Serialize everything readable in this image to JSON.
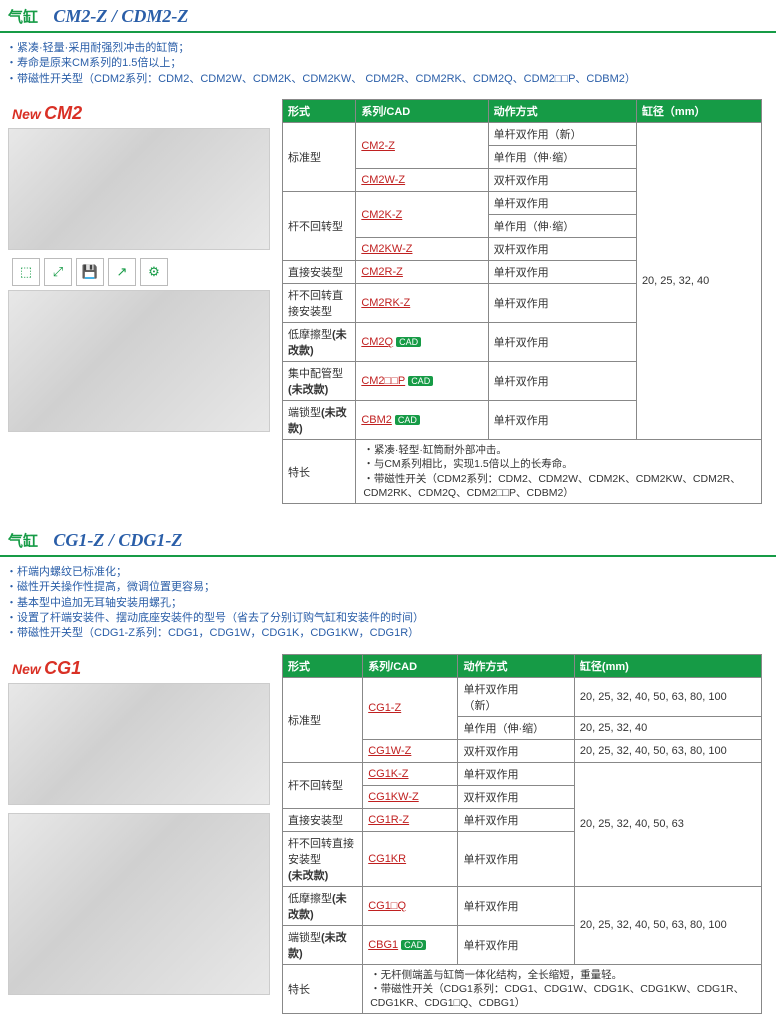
{
  "section1": {
    "title_label": "气缸",
    "title_model": "CM2-Z / CDM2-Z",
    "bullets": [
      "・紧凑·轻量·采用耐强烈冲击的缸筒；",
      "・寿命是原来CM系列的1.5倍以上；",
      "・带磁性开关型（CDM2系列：CDM2、CDM2W、CDM2K、CDM2KW、 CDM2R、CDM2RK、CDM2Q、CDM2□□P、CDBM2）"
    ],
    "badge_new": "New",
    "badge_sku": "CM2",
    "table": {
      "headers": [
        "形式",
        "系列/CAD",
        "动作方式",
        "缸径（mm）"
      ],
      "bore_all": "20, 25, 32, 40",
      "rows": [
        {
          "form": "标准型",
          "form_rowspan": 3,
          "series": "CM2-Z",
          "series_rowspan": 2,
          "mode": "单杆双作用（新）",
          "mode_bold": true
        },
        {
          "mode": "单作用（伸·缩）"
        },
        {
          "series": "CM2W-Z",
          "mode": "双杆双作用"
        },
        {
          "form": "杆不回转型",
          "form_rowspan": 3,
          "series": "CM2K-Z",
          "series_rowspan": 2,
          "mode": "单杆双作用"
        },
        {
          "mode": "单作用（伸·缩）"
        },
        {
          "series": "CM2KW-Z",
          "mode": "双杆双作用"
        },
        {
          "form": "直接安装型",
          "series": "CM2R-Z",
          "mode": "单杆双作用"
        },
        {
          "form": "杆不回转直接安装型",
          "series": "CM2RK-Z",
          "mode": "单杆双作用"
        },
        {
          "form": "低摩擦型(未改款)",
          "form_bold": true,
          "series": "CM2Q",
          "cad": true,
          "mode": "单杆双作用"
        },
        {
          "form": "集中配管型(未改款)",
          "form_bold": true,
          "series": "CM2□□P",
          "cad": true,
          "mode": "单杆双作用"
        },
        {
          "form": "端锁型(未改款)",
          "form_bold": true,
          "series": "CBM2",
          "cad": true,
          "mode": "单杆双作用"
        }
      ],
      "feature_label": "特长",
      "features": [
        "・紧凑·轻型·缸筒耐外部冲击。",
        "・与CM系列相比，实现1.5倍以上的长寿命。",
        "・带磁性开关（CDM2系列：CDM2、CDM2W、CDM2K、CDM2KW、CDM2R、CDM2RK、CDM2Q、CDM2□□P、CDBM2）"
      ]
    }
  },
  "section2": {
    "title_label": "气缸",
    "title_model": "CG1-Z / CDG1-Z",
    "bullets": [
      "・杆端内螺纹已标准化；",
      "・磁性开关操作性提高，微调位置更容易；",
      "・基本型中追加无耳轴安装用螺孔；",
      "・设置了杆端安装件、摆动底座安装件的型号（省去了分别订购气缸和安装件的时间）",
      "・带磁性开关型（CDG1-Z系列：CDG1，CDG1W，CDG1K，CDG1KW，CDG1R）"
    ],
    "badge_new": "New",
    "badge_sku": "CG1",
    "table": {
      "headers": [
        "形式",
        "系列/CAD",
        "动作方式",
        "缸径(mm)"
      ],
      "rows": [
        {
          "form": "标准型",
          "form_rowspan": 3,
          "series": "CG1-Z",
          "series_rowspan": 2,
          "mode": "单杆双作用（新）",
          "bore": "20, 25, 32, 40, 50, 63, 80, 100"
        },
        {
          "mode": "单作用（伸·缩）",
          "bore": "20, 25, 32, 40"
        },
        {
          "series": "CG1W-Z",
          "mode": "双杆双作用",
          "bore": "20, 25, 32, 40, 50, 63, 80, 100"
        },
        {
          "form": "杆不回转型",
          "form_rowspan": 2,
          "series": "CG1K-Z",
          "mode": "单杆双作用",
          "bore": "20, 25, 32, 40, 50, 63",
          "bore_rowspan": 4
        },
        {
          "series": "CG1KW-Z",
          "mode": "双杆双作用"
        },
        {
          "form": "直接安装型",
          "series": "CG1R-Z",
          "mode": "单杆双作用"
        },
        {
          "form": "杆不回转直接安装型(未改款)",
          "form_bold": true,
          "series": "CG1KR",
          "mode": "单杆双作用"
        },
        {
          "form": "低摩擦型(未改款)",
          "form_bold": true,
          "series": "CG1□Q",
          "mode": "单杆双作用",
          "bore": "20, 25, 32, 40, 50, 63, 80, 100",
          "bore_rowspan": 2
        },
        {
          "form": "端锁型(未改款)",
          "form_bold": true,
          "series": "CBG1",
          "cad": true,
          "mode": "单杆双作用"
        }
      ],
      "feature_label": "特长",
      "features": [
        "・无杆侧端盖与缸筒一体化结构，全长缩短，重量轻。",
        "・带磁性开关（CDG1系列：CDG1、CDG1W、CDG1K、CDG1KW、CDG1R、CDG1KR、CDG1□Q、CDBG1）"
      ]
    }
  },
  "toolbar_icons": [
    "⬚",
    "⤢",
    "💾",
    "↗",
    "⚙"
  ]
}
